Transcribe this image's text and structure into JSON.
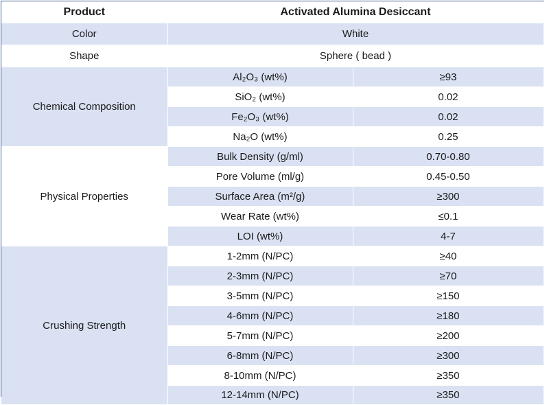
{
  "header": {
    "product_label": "Product",
    "product_name": "Activated Alumina Desiccant"
  },
  "basic": [
    {
      "label": "Color",
      "value": "White"
    },
    {
      "label": "Shape",
      "value": "Sphere ( bead )"
    }
  ],
  "groups": [
    {
      "label": "Chemical Composition",
      "rows": [
        {
          "property": "Al₂O₃ (wt%)",
          "value": "≥93"
        },
        {
          "property": "SiO₂ (wt%)",
          "value": "0.02"
        },
        {
          "property": "Fe₂O₃ (wt%)",
          "value": "0.02"
        },
        {
          "property": "Na₂O (wt%)",
          "value": "0.25"
        }
      ]
    },
    {
      "label": "Physical Properties",
      "rows": [
        {
          "property": "Bulk Density (g/ml)",
          "value": "0.70-0.80"
        },
        {
          "property": "Pore Volume (ml/g)",
          "value": "0.45-0.50"
        },
        {
          "property": "Surface Area (m²/g)",
          "value": "≥300"
        },
        {
          "property": "Wear Rate (wt%)",
          "value": "≤0.1"
        },
        {
          "property": "LOI (wt%)",
          "value": "4-7"
        }
      ]
    },
    {
      "label": "Crushing Strength",
      "rows": [
        {
          "property": "1-2mm (N/PC)",
          "value": "≥40"
        },
        {
          "property": "2-3mm (N/PC)",
          "value": "≥70"
        },
        {
          "property": "3-5mm (N/PC)",
          "value": "≥150"
        },
        {
          "property": "4-6mm (N/PC)",
          "value": "≥180"
        },
        {
          "property": "5-7mm (N/PC)",
          "value": "≥200"
        },
        {
          "property": "6-8mm (N/PC)",
          "value": "≥300"
        },
        {
          "property": "8-10mm (N/PC)",
          "value": "≥350"
        },
        {
          "property": "12-14mm (N/PC)",
          "value": "≥350"
        }
      ]
    }
  ],
  "colors": {
    "row_blue": "#d9e1f2",
    "row_white": "#ffffff",
    "border": "#3c5a8c"
  }
}
